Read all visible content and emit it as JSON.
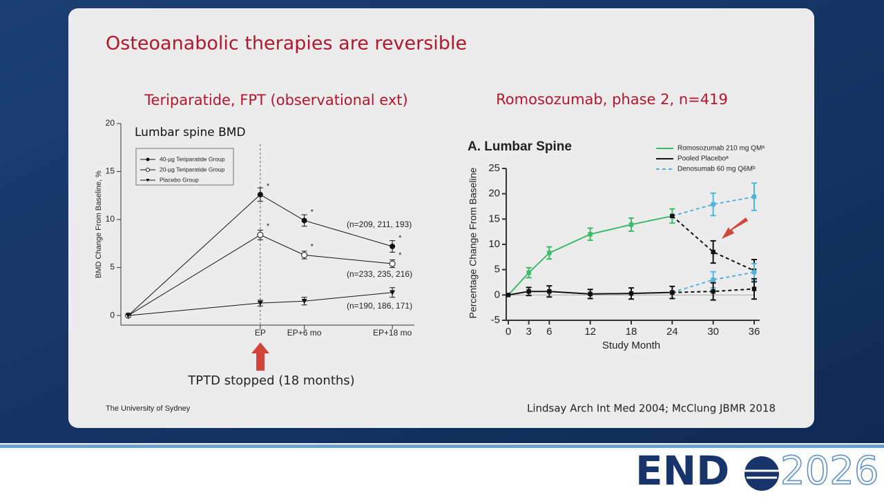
{
  "slide": {
    "title": "Osteoanabolic therapies are reversible",
    "footer": "The University of Sydney",
    "citation": "Lindsay Arch Int Med 2004; McClung JBMR 2018",
    "logo": {
      "left": "END",
      "right": "2026"
    }
  },
  "chart_data": [
    {
      "type": "line",
      "title": "Teriparatide, FPT (observational ext)",
      "subtitle": "Lumbar spine BMD",
      "ylabel": "BMD Change From Baseline, %",
      "x": [
        0,
        18,
        24,
        36
      ],
      "xlim": [
        -1,
        39
      ],
      "xticks": [
        {
          "value": 18,
          "label": "EP"
        },
        {
          "value": 24,
          "label": "EP+6 mo"
        },
        {
          "value": 36,
          "label": "EP+18 mo"
        }
      ],
      "ylim": [
        -1,
        20
      ],
      "yticks": [
        0,
        5,
        10,
        15,
        20
      ],
      "legend": "upper-left",
      "significance_label": "*",
      "annotations": [
        "(n=209, 211, 193)",
        "(n=233, 235, 216)",
        "(n=190, 186, 171)",
        "TPTD stopped (18 months)"
      ],
      "series": [
        {
          "name": "40-µg Teriparatide Group",
          "color": "#111111",
          "marker": "filled-circle",
          "values": [
            0,
            12.6,
            9.9,
            7.2
          ],
          "errors": [
            0,
            0.7,
            0.6,
            0.6
          ],
          "significant": [
            false,
            true,
            true,
            true
          ]
        },
        {
          "name": "20-µg Teriparatide Group",
          "color": "#111111",
          "marker": "open-circle",
          "values": [
            0,
            8.4,
            6.3,
            5.4
          ],
          "errors": [
            0,
            0.5,
            0.4,
            0.4
          ],
          "significant": [
            false,
            true,
            true,
            true
          ]
        },
        {
          "name": "Placebo Group",
          "color": "#111111",
          "marker": "triangle-down",
          "values": [
            0,
            1.3,
            1.5,
            2.4
          ],
          "errors": [
            0,
            0.3,
            0.4,
            0.5
          ],
          "significant": [
            false,
            false,
            false,
            false
          ]
        }
      ]
    },
    {
      "type": "line",
      "title": "Romosozumab, phase 2, n=419",
      "subtitle": "A. Lumbar Spine",
      "xlabel": "Study Month",
      "ylabel": "Percentage Change From Baseline",
      "x": [
        0,
        3,
        6,
        12,
        18,
        24,
        30,
        36
      ],
      "xlim": [
        0,
        36
      ],
      "xticks": [
        0,
        3,
        6,
        12,
        18,
        24,
        30,
        36
      ],
      "ylim": [
        -5,
        25
      ],
      "yticks": [
        -5,
        0,
        5,
        10,
        15,
        20,
        25
      ],
      "legend": "upper-right",
      "series": [
        {
          "name": "Romosozumab 210 mg QMᵃ",
          "color": "#3dbb6a",
          "marker": "square",
          "dashed": false,
          "values": [
            0,
            4.4,
            8.3,
            12,
            13.9,
            15.6,
            null,
            null
          ],
          "errors": [
            0,
            1.0,
            1.2,
            1.2,
            1.3,
            1.4,
            null,
            null
          ]
        },
        {
          "name": "Pooled Placeboᵃ",
          "color": "#111111",
          "marker": "square",
          "dashed": false,
          "values": [
            0,
            0.7,
            0.7,
            0.2,
            0.3,
            0.5,
            null,
            null
          ],
          "errors": [
            0,
            0.8,
            1.1,
            0.9,
            1.1,
            1.2,
            null,
            null
          ]
        },
        {
          "name": "Denosumab 60 mg Q6Mᵇ",
          "color": "#4fb3dc",
          "marker": "square",
          "dashed": true,
          "values": [
            null,
            null,
            null,
            null,
            null,
            15.6,
            17.9,
            19.4
          ],
          "errors": [
            null,
            null,
            null,
            null,
            null,
            null,
            2.2,
            2.7
          ]
        },
        {
          "color": "#111111",
          "marker": "square",
          "dashed": true,
          "values": [
            null,
            null,
            null,
            null,
            null,
            15.6,
            8.5,
            4.8
          ],
          "errors": [
            null,
            null,
            null,
            null,
            null,
            null,
            2.2,
            2.2
          ]
        },
        {
          "color": "#4fb3dc",
          "marker": "square",
          "dashed": true,
          "values": [
            null,
            null,
            null,
            null,
            null,
            0.5,
            3.0,
            4.5
          ],
          "errors": [
            null,
            null,
            null,
            null,
            null,
            null,
            1.6,
            1.7
          ]
        },
        {
          "color": "#111111",
          "marker": "square",
          "dashed": true,
          "values": [
            null,
            null,
            null,
            null,
            null,
            0.5,
            0.7,
            1.2
          ],
          "errors": [
            null,
            null,
            null,
            null,
            null,
            null,
            1.7,
            2.0
          ]
        }
      ]
    }
  ]
}
